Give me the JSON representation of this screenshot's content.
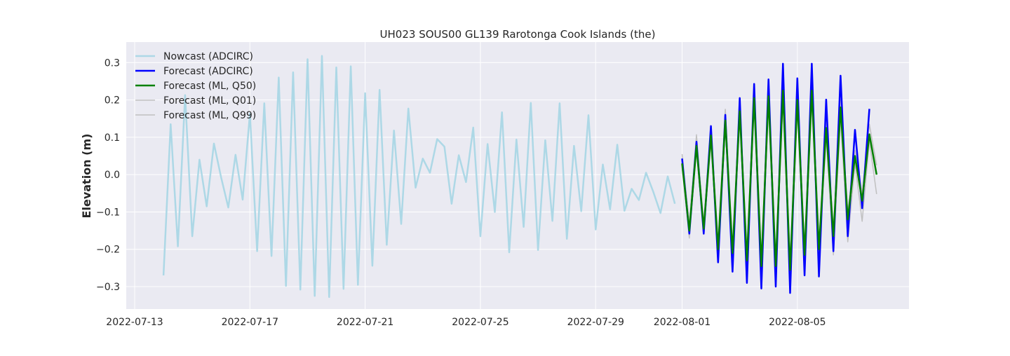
{
  "chart_data": {
    "type": "line",
    "title": "UH023 SOUS00 GL139 Rarotonga Cook Islands (the)",
    "xlabel": "",
    "ylabel": "Elevation (m)",
    "x_range": [
      "2022-07-12T17:00",
      "2022-08-08T21:00"
    ],
    "ylim": [
      -0.36,
      0.355
    ],
    "grid": true,
    "legend_position": "top-left",
    "x_ticks": [
      "2022-07-13",
      "2022-07-17",
      "2022-07-21",
      "2022-07-25",
      "2022-07-29",
      "2022-08-01",
      "2022-08-05"
    ],
    "y_ticks": [
      -0.3,
      -0.2,
      -0.1,
      0.0,
      0.1,
      0.2,
      0.3
    ],
    "y_tick_labels": [
      "−0.3",
      "−0.2",
      "−0.1",
      "0.0",
      "0.1",
      "0.2",
      "0.3"
    ],
    "series": [
      {
        "name": "Nowcast (ADCIRC)",
        "color": "#add8e6",
        "width": 2.5,
        "x": [
          "2022-07-14T00:00",
          "2022-07-14T06:00",
          "2022-07-14T12:00",
          "2022-07-14T18:00",
          "2022-07-15T00:00",
          "2022-07-15T06:00",
          "2022-07-15T12:00",
          "2022-07-15T18:00",
          "2022-07-16T00:00",
          "2022-07-16T06:00",
          "2022-07-16T12:00",
          "2022-07-16T18:00",
          "2022-07-17T00:00",
          "2022-07-17T06:00",
          "2022-07-17T12:00",
          "2022-07-17T18:00",
          "2022-07-18T00:00",
          "2022-07-18T06:00",
          "2022-07-18T12:00",
          "2022-07-18T18:00",
          "2022-07-19T00:00",
          "2022-07-19T06:00",
          "2022-07-19T12:00",
          "2022-07-19T18:00",
          "2022-07-20T00:00",
          "2022-07-20T06:00",
          "2022-07-20T12:00",
          "2022-07-20T18:00",
          "2022-07-21T00:00",
          "2022-07-21T06:00",
          "2022-07-21T12:00",
          "2022-07-21T18:00",
          "2022-07-22T00:00",
          "2022-07-22T06:00",
          "2022-07-22T12:00",
          "2022-07-22T18:00",
          "2022-07-23T00:00",
          "2022-07-23T06:00",
          "2022-07-23T12:00",
          "2022-07-23T18:00",
          "2022-07-24T00:00",
          "2022-07-24T06:00",
          "2022-07-24T12:00",
          "2022-07-24T18:00",
          "2022-07-25T00:00",
          "2022-07-25T06:00",
          "2022-07-25T12:00",
          "2022-07-25T18:00",
          "2022-07-26T00:00",
          "2022-07-26T06:00",
          "2022-07-26T12:00",
          "2022-07-26T18:00",
          "2022-07-27T00:00",
          "2022-07-27T06:00",
          "2022-07-27T12:00",
          "2022-07-27T18:00",
          "2022-07-28T00:00",
          "2022-07-28T06:00",
          "2022-07-28T12:00",
          "2022-07-28T18:00",
          "2022-07-29T00:00",
          "2022-07-29T06:00",
          "2022-07-29T12:00",
          "2022-07-29T18:00",
          "2022-07-30T00:00",
          "2022-07-30T06:00",
          "2022-07-30T12:00",
          "2022-07-30T18:00",
          "2022-07-31T00:00",
          "2022-07-31T06:00",
          "2022-07-31T12:00",
          "2022-07-31T18:00"
        ],
        "y": [
          -0.27,
          0.135,
          -0.192,
          0.213,
          -0.165,
          0.04,
          -0.085,
          0.083,
          -0.007,
          -0.088,
          0.053,
          -0.067,
          0.163,
          -0.205,
          0.191,
          -0.218,
          0.26,
          -0.298,
          0.274,
          -0.308,
          0.309,
          -0.325,
          0.318,
          -0.328,
          0.287,
          -0.306,
          0.29,
          -0.295,
          0.218,
          -0.244,
          0.227,
          -0.188,
          0.118,
          -0.132,
          0.177,
          -0.035,
          0.043,
          0.005,
          0.095,
          0.075,
          -0.078,
          0.052,
          -0.02,
          0.126,
          -0.165,
          0.082,
          -0.1,
          0.167,
          -0.208,
          0.094,
          -0.14,
          0.192,
          -0.202,
          0.092,
          -0.124,
          0.191,
          -0.172,
          0.077,
          -0.098,
          0.159,
          -0.147,
          0.027,
          -0.093,
          0.08,
          -0.097,
          -0.038,
          -0.068,
          0.005,
          -0.046,
          -0.103,
          -0.005,
          -0.078
        ]
      },
      {
        "name": "Forecast (ADCIRC)",
        "color": "#0000ff",
        "width": 2.5,
        "x": [
          "2022-08-01T00:00",
          "2022-08-01T06:00",
          "2022-08-01T12:00",
          "2022-08-01T18:00",
          "2022-08-02T00:00",
          "2022-08-02T06:00",
          "2022-08-02T12:00",
          "2022-08-02T18:00",
          "2022-08-03T00:00",
          "2022-08-03T06:00",
          "2022-08-03T12:00",
          "2022-08-03T18:00",
          "2022-08-04T00:00",
          "2022-08-04T06:00",
          "2022-08-04T12:00",
          "2022-08-04T18:00",
          "2022-08-05T00:00",
          "2022-08-05T06:00",
          "2022-08-05T12:00",
          "2022-08-05T18:00",
          "2022-08-06T00:00",
          "2022-08-06T06:00",
          "2022-08-06T12:00",
          "2022-08-06T18:00",
          "2022-08-07T00:00",
          "2022-08-07T06:00",
          "2022-08-07T12:00",
          "2022-08-07T18:00",
          "2022-08-08T00:00",
          "2022-08-08T06:00",
          "2022-08-08T12:00"
        ],
        "y": [
          0.043,
          -0.158,
          0.088,
          -0.158,
          0.13,
          -0.235,
          0.16,
          -0.26,
          0.205,
          -0.29,
          0.243,
          -0.305,
          0.255,
          -0.3,
          0.297,
          -0.317,
          0.258,
          -0.27,
          0.297,
          -0.273,
          0.201,
          -0.205,
          0.265,
          -0.165,
          0.12,
          -0.09,
          0.176,
          null,
          null,
          null,
          null
        ]
      },
      {
        "name": "Forecast (ML, Q50)",
        "color": "#008000",
        "width": 2.5,
        "x": [
          "2022-08-01T00:00",
          "2022-08-01T06:00",
          "2022-08-01T12:00",
          "2022-08-01T18:00",
          "2022-08-02T00:00",
          "2022-08-02T06:00",
          "2022-08-02T12:00",
          "2022-08-02T18:00",
          "2022-08-03T00:00",
          "2022-08-03T06:00",
          "2022-08-03T12:00",
          "2022-08-03T18:00",
          "2022-08-04T00:00",
          "2022-08-04T06:00",
          "2022-08-04T12:00",
          "2022-08-04T18:00",
          "2022-08-05T00:00",
          "2022-08-05T06:00",
          "2022-08-05T12:00",
          "2022-08-05T18:00",
          "2022-08-06T00:00",
          "2022-08-06T06:00",
          "2022-08-06T12:00",
          "2022-08-06T18:00",
          "2022-08-07T00:00",
          "2022-08-07T06:00",
          "2022-08-07T12:00",
          "2022-08-07T18:00",
          "2022-08-08T00:00",
          "2022-08-08T06:00",
          "2022-08-08T12:00"
        ],
        "y": [
          0.03,
          -0.15,
          0.077,
          -0.145,
          0.105,
          -0.2,
          0.145,
          -0.21,
          0.17,
          -0.23,
          0.205,
          -0.245,
          0.21,
          -0.245,
          0.225,
          -0.255,
          0.2,
          -0.215,
          0.225,
          -0.2,
          0.125,
          -0.165,
          0.18,
          -0.12,
          0.05,
          -0.07,
          0.108,
          0.0,
          null,
          null,
          null
        ]
      },
      {
        "name": "Forecast (ML, Q01)",
        "color": "#c0c0c0",
        "width": 1.5,
        "x": [
          "2022-08-01T00:00",
          "2022-08-01T06:00",
          "2022-08-01T12:00",
          "2022-08-01T18:00",
          "2022-08-02T00:00",
          "2022-08-02T06:00",
          "2022-08-02T12:00",
          "2022-08-02T18:00",
          "2022-08-03T00:00",
          "2022-08-03T06:00",
          "2022-08-03T12:00",
          "2022-08-03T18:00",
          "2022-08-04T00:00",
          "2022-08-04T06:00",
          "2022-08-04T12:00",
          "2022-08-04T18:00",
          "2022-08-05T00:00",
          "2022-08-05T06:00",
          "2022-08-05T12:00",
          "2022-08-05T18:00",
          "2022-08-06T00:00",
          "2022-08-06T06:00",
          "2022-08-06T12:00",
          "2022-08-06T18:00",
          "2022-08-07T00:00",
          "2022-08-07T06:00",
          "2022-08-07T12:00",
          "2022-08-07T18:00",
          "2022-08-08T00:00",
          "2022-08-08T06:00",
          "2022-08-08T12:00"
        ],
        "y": [
          0.02,
          -0.17,
          0.065,
          -0.16,
          0.09,
          -0.22,
          0.125,
          -0.23,
          0.15,
          -0.25,
          0.18,
          -0.265,
          0.19,
          -0.265,
          0.2,
          -0.275,
          0.175,
          -0.235,
          0.2,
          -0.225,
          0.1,
          -0.215,
          0.155,
          -0.18,
          0.03,
          -0.125,
          0.09,
          -0.052,
          null,
          null,
          null
        ]
      },
      {
        "name": "Forecast (ML, Q99)",
        "color": "#c0c0c0",
        "width": 1.5,
        "x": [
          "2022-08-01T00:00",
          "2022-08-01T06:00",
          "2022-08-01T12:00",
          "2022-08-01T18:00",
          "2022-08-02T00:00",
          "2022-08-02T06:00",
          "2022-08-02T12:00",
          "2022-08-02T18:00",
          "2022-08-03T00:00",
          "2022-08-03T06:00",
          "2022-08-03T12:00",
          "2022-08-03T18:00",
          "2022-08-04T00:00",
          "2022-08-04T06:00",
          "2022-08-04T12:00",
          "2022-08-04T18:00",
          "2022-08-05T00:00",
          "2022-08-05T06:00",
          "2022-08-05T12:00",
          "2022-08-05T18:00",
          "2022-08-06T00:00",
          "2022-08-06T06:00",
          "2022-08-06T12:00",
          "2022-08-06T18:00",
          "2022-08-07T00:00",
          "2022-08-07T06:00",
          "2022-08-07T12:00",
          "2022-08-07T18:00",
          "2022-08-08T00:00",
          "2022-08-08T06:00",
          "2022-08-08T12:00"
        ],
        "y": [
          0.055,
          -0.13,
          0.107,
          -0.13,
          0.125,
          -0.18,
          0.175,
          -0.19,
          0.195,
          -0.21,
          0.225,
          -0.225,
          0.235,
          -0.225,
          0.245,
          -0.235,
          0.225,
          -0.195,
          0.245,
          -0.18,
          0.15,
          -0.145,
          0.2,
          -0.1,
          0.065,
          -0.05,
          0.135,
          0.025,
          null,
          null,
          null
        ]
      }
    ]
  }
}
